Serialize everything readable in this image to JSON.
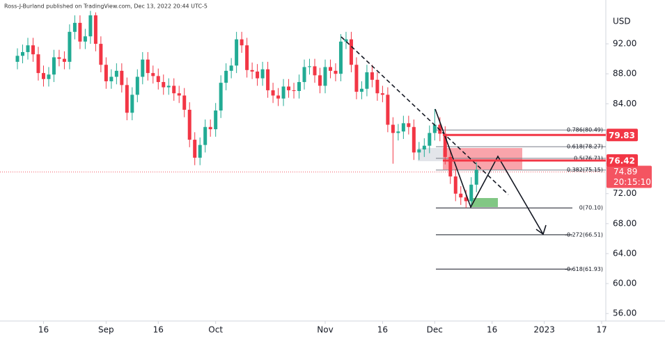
{
  "chart_data": {
    "type": "candlestick",
    "title": "Ross-J-Burland published on TradingView.com, Dec 13, 2022 20:44 UTC-5",
    "y_axis_label": "USD",
    "up_color": "#22ab94",
    "down_color": "#f23645",
    "open": [
      89.6,
      90.4,
      90.9,
      91.8,
      90.6,
      88.1,
      87.3,
      87.9,
      90.2,
      90.0,
      89.6,
      93.6,
      94.8,
      92.3,
      93.0,
      95.8,
      92.0,
      89.2,
      87.0,
      87.6,
      88.4,
      86.5,
      82.8,
      85.2,
      87.6,
      89.9,
      88.1,
      87.7,
      86.9,
      86.2,
      86.4,
      85.4,
      85.1,
      83.2,
      79.2,
      76.8,
      78.5,
      80.9,
      80.6,
      83.1,
      86.8,
      88.4,
      89.1,
      92.6,
      91.8,
      88.5,
      88.3,
      87.4,
      88.6,
      85.8,
      85.1,
      84.7,
      86.3,
      85.8,
      85.7,
      86.9,
      88.9,
      89.0,
      87.8,
      86.4,
      88.9,
      88.4,
      88.0,
      92.3,
      92.6,
      89.2,
      85.6,
      86.0,
      88.2,
      87.2,
      85.4,
      85.2,
      81.2,
      80.1,
      80.3,
      81.4,
      80.9,
      77.5,
      77.9,
      78.4,
      80.1,
      81.2,
      80.0,
      76.9,
      74.3,
      72.0,
      71.5,
      71.0,
      73.2
    ],
    "high": [
      91.4,
      91.9,
      92.8,
      92.8,
      91.6,
      89.1,
      88.9,
      91.2,
      91.2,
      91.0,
      94.6,
      95.8,
      95.8,
      94.0,
      96.4,
      96.2,
      93.0,
      90.2,
      88.6,
      89.4,
      89.4,
      87.5,
      86.2,
      88.6,
      90.9,
      90.9,
      89.1,
      88.7,
      87.9,
      87.4,
      87.4,
      86.4,
      86.1,
      84.2,
      80.2,
      79.5,
      81.9,
      81.9,
      84.1,
      87.8,
      89.4,
      90.1,
      93.6,
      93.6,
      92.8,
      89.5,
      89.3,
      89.6,
      89.6,
      86.8,
      86.1,
      87.3,
      87.3,
      86.8,
      87.9,
      89.9,
      90.0,
      90.0,
      88.8,
      89.9,
      89.9,
      89.4,
      93.3,
      93.6,
      93.6,
      90.2,
      87.0,
      89.2,
      89.2,
      88.2,
      86.4,
      86.2,
      82.2,
      81.3,
      82.4,
      82.4,
      81.9,
      78.9,
      79.4,
      81.1,
      83.3,
      82.2,
      81.0,
      77.9,
      75.3,
      73.0,
      72.5,
      74.2,
      76.2
    ],
    "low": [
      88.6,
      89.4,
      89.9,
      89.6,
      87.1,
      86.3,
      86.3,
      86.9,
      89.0,
      88.6,
      88.6,
      92.6,
      91.3,
      91.3,
      92.0,
      91.0,
      88.2,
      86.0,
      86.0,
      86.6,
      85.5,
      81.8,
      81.8,
      84.2,
      86.6,
      87.1,
      86.7,
      85.9,
      85.2,
      85.2,
      84.4,
      84.1,
      82.2,
      78.2,
      75.8,
      75.8,
      77.5,
      79.6,
      79.6,
      82.1,
      85.8,
      87.4,
      88.1,
      90.8,
      87.5,
      87.3,
      86.4,
      86.4,
      84.8,
      84.1,
      83.7,
      83.7,
      84.8,
      84.7,
      84.7,
      85.9,
      87.9,
      86.8,
      85.4,
      85.4,
      87.4,
      87.0,
      87.0,
      91.3,
      88.2,
      84.6,
      84.6,
      85.0,
      86.2,
      84.4,
      84.2,
      80.2,
      76.0,
      79.1,
      79.3,
      79.9,
      76.5,
      76.5,
      76.9,
      77.4,
      79.1,
      79.0,
      75.9,
      73.3,
      71.0,
      70.5,
      70.1,
      70.3,
      72.2
    ],
    "close": [
      90.4,
      90.9,
      91.8,
      90.6,
      88.1,
      87.3,
      87.9,
      90.2,
      90.0,
      89.6,
      93.6,
      94.8,
      92.3,
      93.0,
      95.8,
      92.0,
      89.2,
      87.0,
      87.6,
      88.4,
      86.5,
      82.8,
      85.2,
      87.6,
      89.9,
      88.1,
      87.7,
      86.9,
      86.2,
      86.4,
      85.4,
      85.1,
      83.2,
      79.2,
      76.8,
      78.5,
      80.9,
      80.6,
      83.1,
      86.8,
      88.4,
      89.1,
      92.6,
      91.8,
      88.5,
      88.3,
      87.4,
      88.6,
      85.8,
      85.1,
      84.7,
      86.3,
      85.8,
      85.7,
      86.9,
      88.9,
      89.0,
      87.8,
      86.4,
      88.9,
      88.4,
      88.0,
      92.3,
      92.6,
      89.2,
      85.6,
      86.0,
      88.2,
      87.2,
      85.4,
      85.2,
      81.2,
      80.1,
      80.3,
      81.4,
      80.9,
      77.5,
      77.9,
      78.4,
      80.1,
      81.2,
      80.0,
      76.9,
      74.3,
      72.0,
      71.5,
      71.0,
      73.2,
      75.2
    ],
    "xlim": [
      -3.34,
      112.8
    ],
    "xticks": [
      {
        "value": 5,
        "label": "16"
      },
      {
        "value": 17,
        "label": "Sep"
      },
      {
        "value": 27,
        "label": "16"
      },
      {
        "value": 38,
        "label": "Oct"
      },
      {
        "value": 59,
        "label": "Nov"
      },
      {
        "value": 70,
        "label": "16"
      },
      {
        "value": 80,
        "label": "Dec"
      },
      {
        "value": 91,
        "label": "16"
      },
      {
        "value": 101,
        "label": "2023"
      },
      {
        "value": 112,
        "label": "17"
      }
    ],
    "ylim": [
      55.0,
      97.85
    ],
    "yticks": [
      {
        "value": 56,
        "label": "56.00"
      },
      {
        "value": 60,
        "label": "60.00"
      },
      {
        "value": 64,
        "label": "64.00"
      },
      {
        "value": 68,
        "label": "68.00"
      },
      {
        "value": 72,
        "label": "72.00"
      },
      {
        "value": 76,
        "label": "76.00"
      },
      {
        "value": 80,
        "label": "80.00"
      },
      {
        "value": 84,
        "label": "84.00"
      },
      {
        "value": 88,
        "label": "88.00"
      },
      {
        "value": 92,
        "label": "92.00"
      }
    ],
    "fib_levels": [
      {
        "value": 80.49,
        "label": "0.786(80.49)"
      },
      {
        "value": 78.27,
        "label": "0.618(78.27)"
      },
      {
        "value": 76.71,
        "label": "0.5(76.71)"
      },
      {
        "value": 75.15,
        "label": "0.382(75.15)"
      },
      {
        "value": 70.1,
        "label": "0(70.10)"
      },
      {
        "value": 66.51,
        "label": "-0.272(66.51)"
      },
      {
        "value": 61.93,
        "label": "-0.618(61.93)"
      }
    ],
    "price_lines": [
      79.83,
      76.42
    ],
    "price_line_color": "#f23645",
    "last_price": 74.89,
    "countdown": "20:15:10"
  }
}
